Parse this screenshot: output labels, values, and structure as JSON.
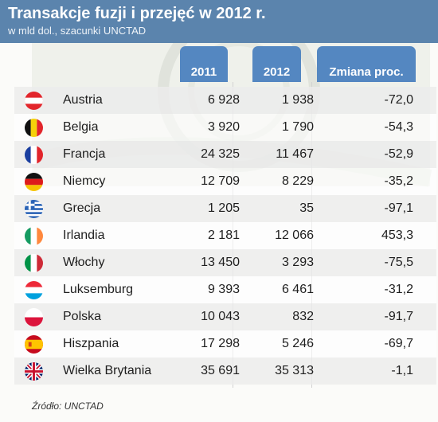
{
  "header": {
    "title": "Transakcje fuzji i przejęć w 2012 r.",
    "subtitle": "w mld dol., szacunki UNCTAD"
  },
  "source": "Źródło: UNCTAD",
  "colors": {
    "header": "#5b84ad",
    "column_tab": "#5487c1"
  },
  "chart_data": {
    "type": "table",
    "columns": [
      "2011",
      "2012",
      "Zmiana proc."
    ],
    "rows": [
      {
        "country": "Austria",
        "flag": "austria-flag",
        "v2011": "6 928",
        "v2012": "1 938",
        "change": "-72,0"
      },
      {
        "country": "Belgia",
        "flag": "belgium-flag",
        "v2011": "3 920",
        "v2012": "1 790",
        "change": "-54,3"
      },
      {
        "country": "Francja",
        "flag": "france-flag",
        "v2011": "24 325",
        "v2012": "11 467",
        "change": "-52,9"
      },
      {
        "country": "Niemcy",
        "flag": "germany-flag",
        "v2011": "12 709",
        "v2012": "8 229",
        "change": "-35,2"
      },
      {
        "country": "Grecja",
        "flag": "greece-flag",
        "v2011": "1 205",
        "v2012": "35",
        "change": "-97,1"
      },
      {
        "country": "Irlandia",
        "flag": "ireland-flag",
        "v2011": "2 181",
        "v2012": "12 066",
        "change": "453,3"
      },
      {
        "country": "Włochy",
        "flag": "italy-flag",
        "v2011": "13 450",
        "v2012": "3 293",
        "change": "-75,5"
      },
      {
        "country": "Luksemburg",
        "flag": "luxembourg-flag",
        "v2011": "9 393",
        "v2012": "6 461",
        "change": "-31,2"
      },
      {
        "country": "Polska",
        "flag": "poland-flag",
        "v2011": "10 043",
        "v2012": "832",
        "change": "-91,7"
      },
      {
        "country": "Hiszpania",
        "flag": "spain-flag",
        "v2011": "17 298",
        "v2012": "5 246",
        "change": "-69,7"
      },
      {
        "country": "Wielka Brytania",
        "flag": "uk-flag",
        "v2011": "35 691",
        "v2012": "35 313",
        "change": "-1,1"
      }
    ]
  }
}
